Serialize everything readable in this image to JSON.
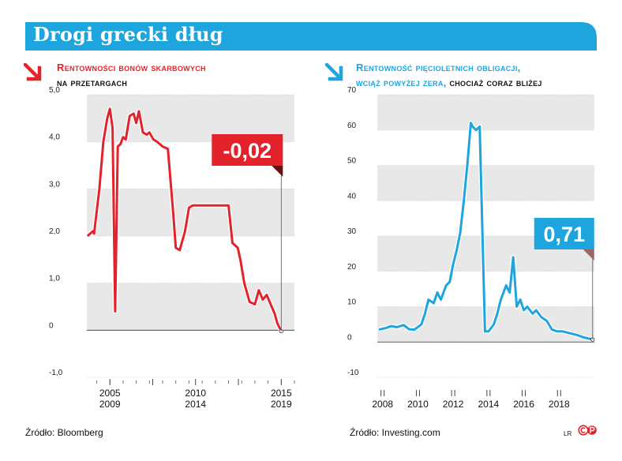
{
  "header": {
    "title": "Drogi grecki dług",
    "banner_color": "#1ea5de"
  },
  "left_chart": {
    "subtitle_line1": "Rentowności bonów skarbowych",
    "subtitle_line2": "na przetargach",
    "arrow_icon": "down-right-arrow-icon",
    "source": "Źródło: Bloomberg",
    "chart_data": {
      "type": "line",
      "title": "",
      "xlabel": "",
      "ylabel": "",
      "ylim": [
        -1.0,
        5.0
      ],
      "yticks": [
        -1.0,
        0,
        1.0,
        2.0,
        3.0,
        4.0,
        5.0
      ],
      "ytick_labels": [
        "-1,0",
        "0",
        "1,0",
        "2,0",
        "3,0",
        "4,0",
        "5,0"
      ],
      "xlim": [
        2003.25,
        2019.0
      ],
      "xtick_labels": [
        {
          "line1": "2005",
          "line2": "2009"
        },
        {
          "line1": "2010",
          "line2": "2014"
        },
        {
          "line1": "2015",
          "line2": "2019"
        }
      ],
      "xtick_positions": [
        2005.0,
        2008.25,
        2011.5,
        2014.75,
        2018.0
      ],
      "shaded_bands": [
        [
          4.0,
          5.0
        ],
        [
          2.0,
          3.0
        ],
        [
          0,
          1.0
        ],
        [
          -1.0,
          -2.0
        ]
      ],
      "line_color": "#e3232b",
      "annotation": {
        "label": "-0,02",
        "x": 2018.0,
        "y": -0.02,
        "color": "#e3232b"
      },
      "series": [
        {
          "x": [
            2003.3,
            2003.7,
            2003.8,
            2004.2,
            2004.5,
            2004.8,
            2005.0,
            2005.2,
            2005.4,
            2005.6,
            2005.8,
            2006.0,
            2006.2,
            2006.5,
            2006.8,
            2007.0,
            2007.2,
            2007.5,
            2007.8,
            2008.0,
            2008.3,
            2008.6,
            2009.0,
            2009.4,
            2009.8,
            2010.0,
            2010.3,
            2010.7,
            2011.0,
            2011.3,
            2011.5,
            2012.0,
            2012.5,
            2013.0,
            2013.5,
            2014.0,
            2014.3,
            2014.7,
            2014.9,
            2015.2,
            2015.6,
            2016.0,
            2016.3,
            2016.6,
            2016.9,
            2017.2,
            2017.5,
            2017.7,
            2018.0
          ],
          "y": [
            2.0,
            2.1,
            2.05,
            3.0,
            4.0,
            4.5,
            4.7,
            4.3,
            0.4,
            3.9,
            3.95,
            4.1,
            4.05,
            4.55,
            4.6,
            4.4,
            4.65,
            4.2,
            4.15,
            4.2,
            4.05,
            4.0,
            3.9,
            3.85,
            2.5,
            1.75,
            1.7,
            2.1,
            2.6,
            2.65,
            2.65,
            2.65,
            2.65,
            2.65,
            2.65,
            2.65,
            1.85,
            1.75,
            1.5,
            1.0,
            0.6,
            0.55,
            0.85,
            0.65,
            0.75,
            0.55,
            0.35,
            0.15,
            -0.02
          ]
        }
      ]
    }
  },
  "right_chart": {
    "subtitle_line1": "Rentowność pięcioletnich obligacji,",
    "subtitle_line2_blue": "wciąż powyżej zera,",
    "subtitle_line2_dark": " chociaż coraz bliżej",
    "arrow_icon": "down-right-arrow-icon",
    "source": "Źródło: Investing.com",
    "chart_data": {
      "type": "line",
      "title": "",
      "xlabel": "",
      "ylabel": "",
      "ylim": [
        -10,
        70
      ],
      "yticks": [
        -10,
        0,
        10,
        20,
        30,
        40,
        50,
        60,
        70
      ],
      "ytick_labels": [
        "-10",
        "0",
        "10",
        "20",
        "30",
        "40",
        "50",
        "60",
        "70"
      ],
      "xlim": [
        2007.7,
        2020.0
      ],
      "xtick_values": [
        2008,
        2010,
        2012,
        2014,
        2016,
        2018
      ],
      "xtick_labels": [
        "2008",
        "2010",
        "2012",
        "2014",
        "2016",
        "2018"
      ],
      "shaded_bands": [
        [
          60,
          70
        ],
        [
          40,
          50
        ],
        [
          20,
          30
        ],
        [
          0,
          10
        ]
      ],
      "line_color": "#1ea5de",
      "annotation": {
        "label": "0,71",
        "x": 2019.9,
        "y": 0.71,
        "color": "#1ea5de"
      },
      "series": [
        {
          "x": [
            2007.8,
            2008.2,
            2008.5,
            2008.8,
            2009.2,
            2009.5,
            2009.8,
            2010.2,
            2010.4,
            2010.6,
            2010.9,
            2011.1,
            2011.3,
            2011.6,
            2011.8,
            2012.0,
            2012.2,
            2012.4,
            2012.6,
            2012.8,
            2013.0,
            2013.1,
            2013.3,
            2013.5,
            2013.8,
            2014.0,
            2014.3,
            2014.5,
            2014.7,
            2015.0,
            2015.2,
            2015.4,
            2015.6,
            2015.8,
            2016.0,
            2016.2,
            2016.5,
            2016.7,
            2017.0,
            2017.3,
            2017.6,
            2017.9,
            2018.2,
            2018.6,
            2019.0,
            2019.4,
            2019.9
          ],
          "y": [
            3.5,
            4.0,
            4.5,
            4.2,
            4.8,
            3.6,
            3.5,
            5.0,
            8.0,
            12.0,
            11.0,
            14.0,
            12.0,
            16.0,
            17.0,
            22.0,
            26.0,
            31.0,
            40.0,
            50.0,
            62.0,
            61.0,
            60.0,
            61.0,
            3.0,
            3.0,
            5.0,
            8.0,
            12.0,
            16.0,
            14.0,
            24.0,
            10.0,
            12.0,
            9.0,
            10.0,
            8.0,
            9.0,
            7.0,
            6.0,
            3.5,
            3.0,
            3.0,
            2.5,
            2.0,
            1.3,
            0.71
          ]
        }
      ]
    }
  },
  "footer": {
    "initials": "LR",
    "logo": "copyright-p-logo",
    "logo_letters": "©P"
  }
}
